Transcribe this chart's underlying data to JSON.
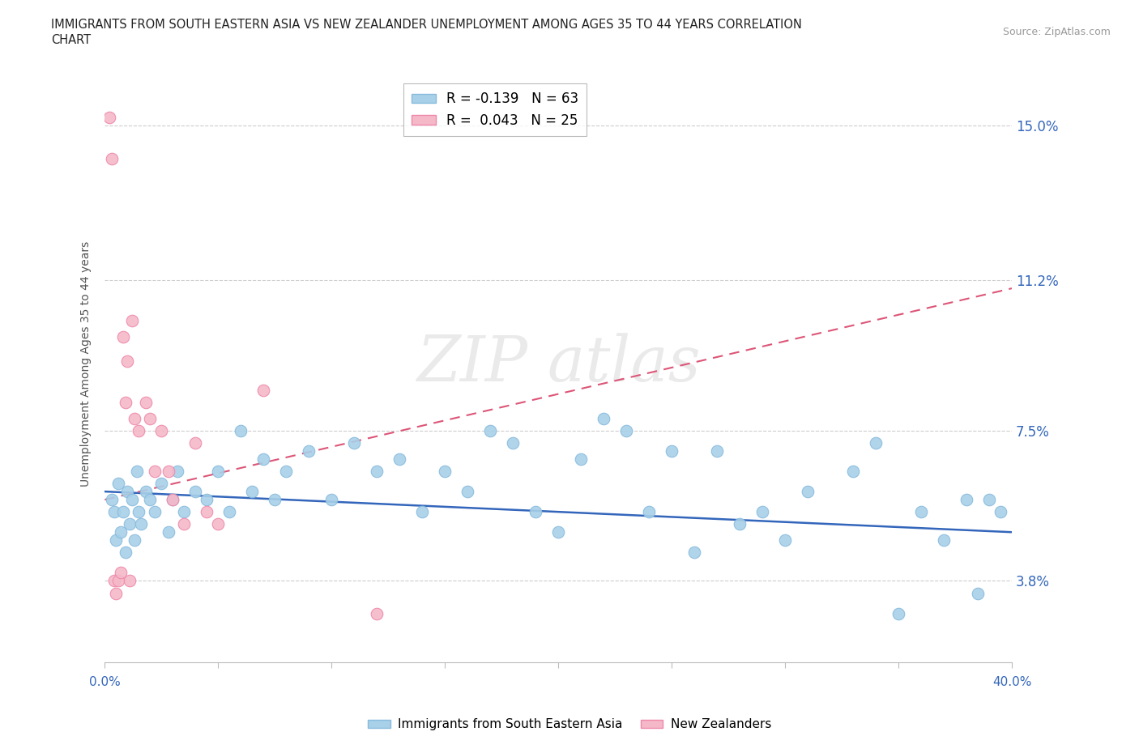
{
  "title_line1": "IMMIGRANTS FROM SOUTH EASTERN ASIA VS NEW ZEALANDER UNEMPLOYMENT AMONG AGES 35 TO 44 YEARS CORRELATION",
  "title_line2": "CHART",
  "source": "Source: ZipAtlas.com",
  "ylabel": "Unemployment Among Ages 35 to 44 years",
  "yticks": [
    3.8,
    7.5,
    11.2,
    15.0
  ],
  "ytick_labels": [
    "3.8%",
    "7.5%",
    "11.2%",
    "15.0%"
  ],
  "xlim": [
    0.0,
    40.0
  ],
  "ylim": [
    1.8,
    16.5
  ],
  "legend1_label": "R = -0.139   N = 63",
  "legend2_label": "R =  0.043   N = 25",
  "blue_color": "#a8d0e8",
  "pink_color": "#f5b8c8",
  "blue_line_color": "#3366bb",
  "pink_line_color": "#dd5577",
  "blue_line_x0": 0.0,
  "blue_line_y0": 6.0,
  "blue_line_x1": 40.0,
  "blue_line_y1": 5.0,
  "pink_line_x0": 0.0,
  "pink_line_y0": 5.8,
  "pink_line_x1": 40.0,
  "pink_line_y1": 11.0,
  "blue_scatter_x": [
    0.3,
    0.4,
    0.5,
    0.6,
    0.7,
    0.8,
    0.9,
    1.0,
    1.1,
    1.2,
    1.3,
    1.4,
    1.5,
    1.6,
    1.8,
    2.0,
    2.2,
    2.5,
    2.8,
    3.0,
    3.2,
    3.5,
    4.0,
    4.5,
    5.0,
    5.5,
    6.0,
    6.5,
    7.0,
    7.5,
    8.0,
    9.0,
    10.0,
    11.0,
    12.0,
    13.0,
    14.0,
    15.0,
    16.0,
    17.0,
    18.0,
    19.0,
    20.0,
    21.0,
    22.0,
    23.0,
    24.0,
    25.0,
    26.0,
    27.0,
    28.0,
    29.0,
    30.0,
    31.0,
    33.0,
    34.0,
    35.0,
    36.0,
    37.0,
    38.0,
    38.5,
    39.0,
    39.5
  ],
  "blue_scatter_y": [
    5.8,
    5.5,
    4.8,
    6.2,
    5.0,
    5.5,
    4.5,
    6.0,
    5.2,
    5.8,
    4.8,
    6.5,
    5.5,
    5.2,
    6.0,
    5.8,
    5.5,
    6.2,
    5.0,
    5.8,
    6.5,
    5.5,
    6.0,
    5.8,
    6.5,
    5.5,
    7.5,
    6.0,
    6.8,
    5.8,
    6.5,
    7.0,
    5.8,
    7.2,
    6.5,
    6.8,
    5.5,
    6.5,
    6.0,
    7.5,
    7.2,
    5.5,
    5.0,
    6.8,
    7.8,
    7.5,
    5.5,
    7.0,
    4.5,
    7.0,
    5.2,
    5.5,
    4.8,
    6.0,
    6.5,
    7.2,
    3.0,
    5.5,
    4.8,
    5.8,
    3.5,
    5.8,
    5.5
  ],
  "pink_scatter_x": [
    0.2,
    0.3,
    0.4,
    0.5,
    0.6,
    0.7,
    0.8,
    0.9,
    1.0,
    1.1,
    1.2,
    1.3,
    1.5,
    1.8,
    2.0,
    2.2,
    2.5,
    2.8,
    3.0,
    3.5,
    4.0,
    4.5,
    5.0,
    7.0,
    12.0
  ],
  "pink_scatter_y": [
    15.2,
    14.2,
    3.8,
    3.5,
    3.8,
    4.0,
    9.8,
    8.2,
    9.2,
    3.8,
    10.2,
    7.8,
    7.5,
    8.2,
    7.8,
    6.5,
    7.5,
    6.5,
    5.8,
    5.2,
    7.2,
    5.5,
    5.2,
    8.5,
    3.0
  ]
}
